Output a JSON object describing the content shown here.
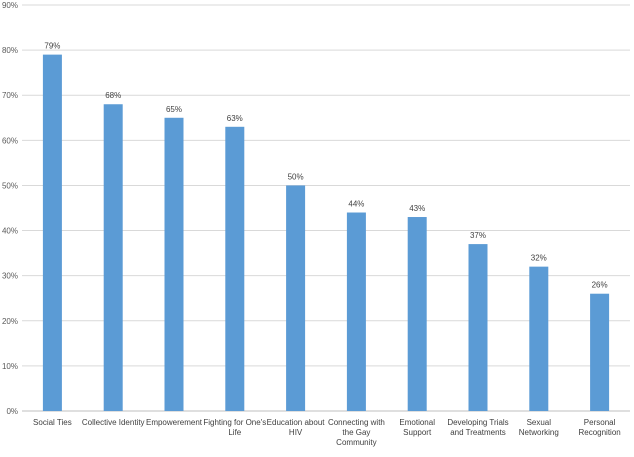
{
  "chart_data": {
    "type": "bar",
    "title": "",
    "xlabel": "",
    "ylabel": "",
    "categories": [
      "Social Ties",
      "Collective Identity",
      "Empowerement",
      "Fighting for One's Life",
      "Education about HIV",
      "Connecting with the Gay Community",
      "Emotional Support",
      "Developing Trials and Treatments",
      "Sexual Networking",
      "Personal Recognition"
    ],
    "category_lines": [
      [
        "Social Ties"
      ],
      [
        "Collective Identity"
      ],
      [
        "Empowerement"
      ],
      [
        "Fighting for One's",
        "Life"
      ],
      [
        "Education about",
        "HIV"
      ],
      [
        "Connecting with",
        "the Gay",
        "Community"
      ],
      [
        "Emotional",
        "Support"
      ],
      [
        "Developing Trials",
        "and Treatments"
      ],
      [
        "Sexual",
        "Networking"
      ],
      [
        "Personal",
        "Recognition"
      ]
    ],
    "values": [
      79,
      68,
      65,
      63,
      50,
      44,
      43,
      37,
      32,
      26
    ],
    "data_labels": [
      "79%",
      "68%",
      "65%",
      "63%",
      "50%",
      "44%",
      "43%",
      "37%",
      "32%",
      "26%"
    ],
    "ylim": [
      0,
      90
    ],
    "yticks": [
      0,
      10,
      20,
      30,
      40,
      50,
      60,
      70,
      80,
      90
    ],
    "ytick_labels": [
      "0%",
      "10%",
      "20%",
      "30%",
      "40%",
      "50%",
      "60%",
      "70%",
      "80%",
      "90%"
    ],
    "grid": true,
    "legend": "none",
    "bar_color": "#5b9bd5",
    "grid_color": "#d9d9d9"
  }
}
